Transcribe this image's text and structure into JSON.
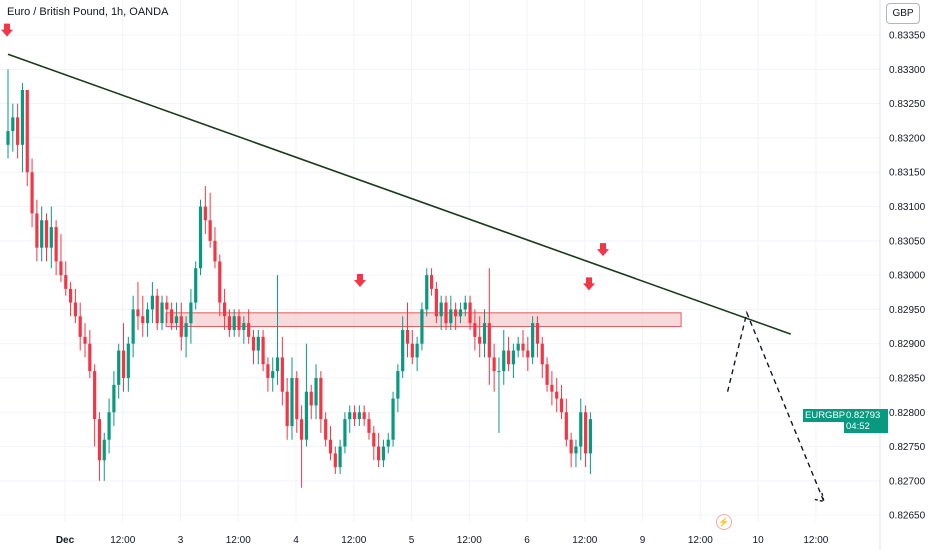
{
  "header": {
    "title": "Euro / British Pound, 1h, OANDA",
    "currency_button": "GBP"
  },
  "price_tag": {
    "ticker": "EURGBP",
    "price": "0.82793",
    "countdown": "04:52"
  },
  "colors": {
    "up": "#089981",
    "down": "#f23645",
    "trendline": "#1b3a1b",
    "zone_fill": "#f4c2c2",
    "zone_border": "#e05a5a",
    "arrow": "#f23645"
  },
  "alert_icon": "lightning-bolt-icon",
  "chart_data": {
    "type": "candlestick",
    "y_axis": {
      "ticks": [
        "0.83350",
        "0.83300",
        "0.83250",
        "0.83200",
        "0.83150",
        "0.83100",
        "0.83050",
        "0.83000",
        "0.82950",
        "0.82900",
        "0.82850",
        "0.82800",
        "0.82750",
        "0.82700",
        "0.82650"
      ],
      "range": [
        0.8264,
        0.83372
      ]
    },
    "x_axis": {
      "ticks": [
        "Dec",
        "12:00",
        "3",
        "12:00",
        "4",
        "12:00",
        "5",
        "12:00",
        "6",
        "12:00",
        "9",
        "12:00",
        "10",
        "12:00"
      ],
      "range": [
        0,
        182
      ]
    },
    "x_tick_positions": [
      0,
      12,
      24,
      36,
      48,
      60,
      72,
      84,
      96,
      108,
      120,
      132,
      144,
      156
    ],
    "candles_ohlc": [
      [
        0.8319,
        0.833,
        0.8317,
        0.8321
      ],
      [
        0.8321,
        0.8325,
        0.8318,
        0.8323
      ],
      [
        0.8323,
        0.8325,
        0.8317,
        0.8319
      ],
      [
        0.8319,
        0.8328,
        0.8315,
        0.8327
      ],
      [
        0.8327,
        0.8327,
        0.8313,
        0.8315
      ],
      [
        0.8315,
        0.8317,
        0.8307,
        0.8309
      ],
      [
        0.8309,
        0.8311,
        0.8302,
        0.8304
      ],
      [
        0.8304,
        0.831,
        0.8302,
        0.8308
      ],
      [
        0.8308,
        0.8309,
        0.8302,
        0.8304
      ],
      [
        0.8304,
        0.831,
        0.8301,
        0.8307
      ],
      [
        0.8307,
        0.8308,
        0.83,
        0.8302
      ],
      [
        0.8302,
        0.8306,
        0.8299,
        0.83
      ],
      [
        0.83,
        0.8302,
        0.8297,
        0.8298
      ],
      [
        0.8298,
        0.8299,
        0.8294,
        0.8296
      ],
      [
        0.8296,
        0.8298,
        0.8293,
        0.8294
      ],
      [
        0.8294,
        0.8296,
        0.8289,
        0.8291
      ],
      [
        0.8291,
        0.8293,
        0.8288,
        0.829
      ],
      [
        0.829,
        0.8292,
        0.8285,
        0.8286
      ],
      [
        0.8286,
        0.8287,
        0.8275,
        0.8279
      ],
      [
        0.8279,
        0.828,
        0.827,
        0.8273
      ],
      [
        0.8273,
        0.8277,
        0.827,
        0.8276
      ],
      [
        0.8276,
        0.8282,
        0.8274,
        0.828
      ],
      [
        0.828,
        0.8286,
        0.8278,
        0.8284
      ],
      [
        0.8284,
        0.829,
        0.8282,
        0.8289
      ],
      [
        0.8289,
        0.8293,
        0.8283,
        0.8285
      ],
      [
        0.8285,
        0.8291,
        0.8283,
        0.829
      ],
      [
        0.829,
        0.8297,
        0.8288,
        0.8295
      ],
      [
        0.8295,
        0.8299,
        0.8292,
        0.8294
      ],
      [
        0.8294,
        0.8297,
        0.8291,
        0.8293
      ],
      [
        0.8293,
        0.8296,
        0.8291,
        0.8295
      ],
      [
        0.8295,
        0.8299,
        0.8293,
        0.8297
      ],
      [
        0.8297,
        0.8298,
        0.8292,
        0.8293
      ],
      [
        0.8293,
        0.8297,
        0.8292,
        0.8296
      ],
      [
        0.8296,
        0.8297,
        0.8293,
        0.8295
      ],
      [
        0.8295,
        0.8296,
        0.8292,
        0.8293
      ],
      [
        0.8293,
        0.8296,
        0.8292,
        0.8294
      ],
      [
        0.8294,
        0.8296,
        0.8289,
        0.8291
      ],
      [
        0.8291,
        0.8294,
        0.8288,
        0.8293
      ],
      [
        0.8293,
        0.8298,
        0.829,
        0.8296
      ],
      [
        0.8296,
        0.8302,
        0.8295,
        0.8301
      ],
      [
        0.8301,
        0.8311,
        0.83,
        0.831
      ],
      [
        0.831,
        0.8313,
        0.8306,
        0.8308
      ],
      [
        0.8308,
        0.8312,
        0.8304,
        0.8305
      ],
      [
        0.8305,
        0.8307,
        0.8301,
        0.8302
      ],
      [
        0.8302,
        0.8303,
        0.8294,
        0.8296
      ],
      [
        0.8296,
        0.8298,
        0.8292,
        0.8294
      ],
      [
        0.8294,
        0.8295,
        0.8291,
        0.8292
      ],
      [
        0.8292,
        0.8295,
        0.8291,
        0.8294
      ],
      [
        0.8294,
        0.8295,
        0.8291,
        0.8292
      ],
      [
        0.8292,
        0.8294,
        0.829,
        0.8293
      ],
      [
        0.8293,
        0.8295,
        0.829,
        0.8291
      ],
      [
        0.8291,
        0.8292,
        0.8287,
        0.8289
      ],
      [
        0.8289,
        0.8292,
        0.8287,
        0.8291
      ],
      [
        0.8291,
        0.8292,
        0.8286,
        0.8287
      ],
      [
        0.8287,
        0.8288,
        0.8283,
        0.8285
      ],
      [
        0.8285,
        0.8288,
        0.8283,
        0.8286
      ],
      [
        0.8286,
        0.83,
        0.8284,
        0.8288
      ],
      [
        0.8288,
        0.8291,
        0.8281,
        0.8283
      ],
      [
        0.8283,
        0.8285,
        0.8276,
        0.8278
      ],
      [
        0.8278,
        0.8288,
        0.8276,
        0.8285
      ],
      [
        0.8285,
        0.8286,
        0.8277,
        0.8279
      ],
      [
        0.8279,
        0.8281,
        0.8269,
        0.8276
      ],
      [
        0.8276,
        0.829,
        0.8275,
        0.8283
      ],
      [
        0.8283,
        0.8284,
        0.8279,
        0.8281
      ],
      [
        0.8281,
        0.8287,
        0.8279,
        0.8285
      ],
      [
        0.8285,
        0.8286,
        0.8277,
        0.8279
      ],
      [
        0.8279,
        0.828,
        0.8275,
        0.8276
      ],
      [
        0.8276,
        0.8278,
        0.8273,
        0.8274
      ],
      [
        0.8274,
        0.8275,
        0.8271,
        0.8272
      ],
      [
        0.8272,
        0.8276,
        0.8271,
        0.8275
      ],
      [
        0.8275,
        0.828,
        0.8274,
        0.8279
      ],
      [
        0.8279,
        0.8281,
        0.8277,
        0.828
      ],
      [
        0.828,
        0.8281,
        0.8278,
        0.8279
      ],
      [
        0.8279,
        0.8281,
        0.8278,
        0.828
      ],
      [
        0.828,
        0.8281,
        0.8278,
        0.8279
      ],
      [
        0.8279,
        0.828,
        0.8276,
        0.8277
      ],
      [
        0.8277,
        0.8278,
        0.8273,
        0.8275
      ],
      [
        0.8275,
        0.8277,
        0.8272,
        0.8273
      ],
      [
        0.8273,
        0.8276,
        0.8272,
        0.8275
      ],
      [
        0.8275,
        0.8277,
        0.8274,
        0.8276
      ],
      [
        0.8276,
        0.8283,
        0.8275,
        0.8282
      ],
      [
        0.8282,
        0.8287,
        0.828,
        0.8286
      ],
      [
        0.8286,
        0.8294,
        0.8285,
        0.8292
      ],
      [
        0.8292,
        0.8296,
        0.8288,
        0.829
      ],
      [
        0.829,
        0.8292,
        0.8287,
        0.8288
      ],
      [
        0.8288,
        0.8291,
        0.8286,
        0.829
      ],
      [
        0.829,
        0.8296,
        0.8289,
        0.8295
      ],
      [
        0.8295,
        0.8301,
        0.8294,
        0.83
      ],
      [
        0.83,
        0.8301,
        0.8297,
        0.8298
      ],
      [
        0.8298,
        0.8299,
        0.8293,
        0.8294
      ],
      [
        0.8294,
        0.8297,
        0.8292,
        0.8296
      ],
      [
        0.8296,
        0.8297,
        0.8292,
        0.8293
      ],
      [
        0.8293,
        0.8297,
        0.8292,
        0.8295
      ],
      [
        0.8295,
        0.8296,
        0.8292,
        0.8294
      ],
      [
        0.8294,
        0.8296,
        0.8293,
        0.8295
      ],
      [
        0.8295,
        0.8297,
        0.8294,
        0.8296
      ],
      [
        0.8296,
        0.8297,
        0.8292,
        0.8293
      ],
      [
        0.8293,
        0.8295,
        0.8289,
        0.8291
      ],
      [
        0.8291,
        0.8294,
        0.8288,
        0.829
      ],
      [
        0.829,
        0.8295,
        0.8288,
        0.8293
      ],
      [
        0.8293,
        0.8301,
        0.8284,
        0.8288
      ],
      [
        0.8288,
        0.829,
        0.8283,
        0.8286
      ],
      [
        0.8286,
        0.8288,
        0.8277,
        0.8286
      ],
      [
        0.8286,
        0.8292,
        0.8284,
        0.8289
      ],
      [
        0.8289,
        0.8291,
        0.8286,
        0.8287
      ],
      [
        0.8287,
        0.829,
        0.8285,
        0.8289
      ],
      [
        0.8289,
        0.8291,
        0.8288,
        0.829
      ],
      [
        0.829,
        0.8292,
        0.8288,
        0.8289
      ],
      [
        0.8289,
        0.8291,
        0.8286,
        0.8288
      ],
      [
        0.8288,
        0.8294,
        0.8287,
        0.8293
      ],
      [
        0.8293,
        0.8294,
        0.8288,
        0.829
      ],
      [
        0.829,
        0.8291,
        0.8285,
        0.8287
      ],
      [
        0.8287,
        0.8288,
        0.8283,
        0.8284
      ],
      [
        0.8284,
        0.8286,
        0.8281,
        0.8283
      ],
      [
        0.8283,
        0.8285,
        0.828,
        0.8282
      ],
      [
        0.8282,
        0.8284,
        0.8279,
        0.828
      ],
      [
        0.828,
        0.8282,
        0.8275,
        0.8276
      ],
      [
        0.8276,
        0.8277,
        0.8272,
        0.8274
      ],
      [
        0.8274,
        0.8276,
        0.8272,
        0.8275
      ],
      [
        0.8275,
        0.8282,
        0.8273,
        0.828
      ],
      [
        0.828,
        0.8281,
        0.8272,
        0.8274
      ],
      [
        0.8274,
        0.828,
        0.8271,
        0.8279
      ]
    ],
    "annotations": {
      "trendline": [
        [
          0,
          0.83322
        ],
        [
          130,
          0.82914
        ]
      ],
      "resistance_zone": [
        [
          21,
          0.82925
        ],
        [
          128,
          0.82945
        ]
      ],
      "projection_path": [
        [
          120,
          0.8283
        ],
        [
          124,
          0.82945
        ],
        [
          140,
          0.8267
        ]
      ],
      "down_arrows": [
        [
          0,
          0.83355
        ],
        [
          52,
          0.8299
        ],
        [
          100,
          0.83035
        ],
        [
          97,
          0.82985
        ]
      ]
    }
  }
}
